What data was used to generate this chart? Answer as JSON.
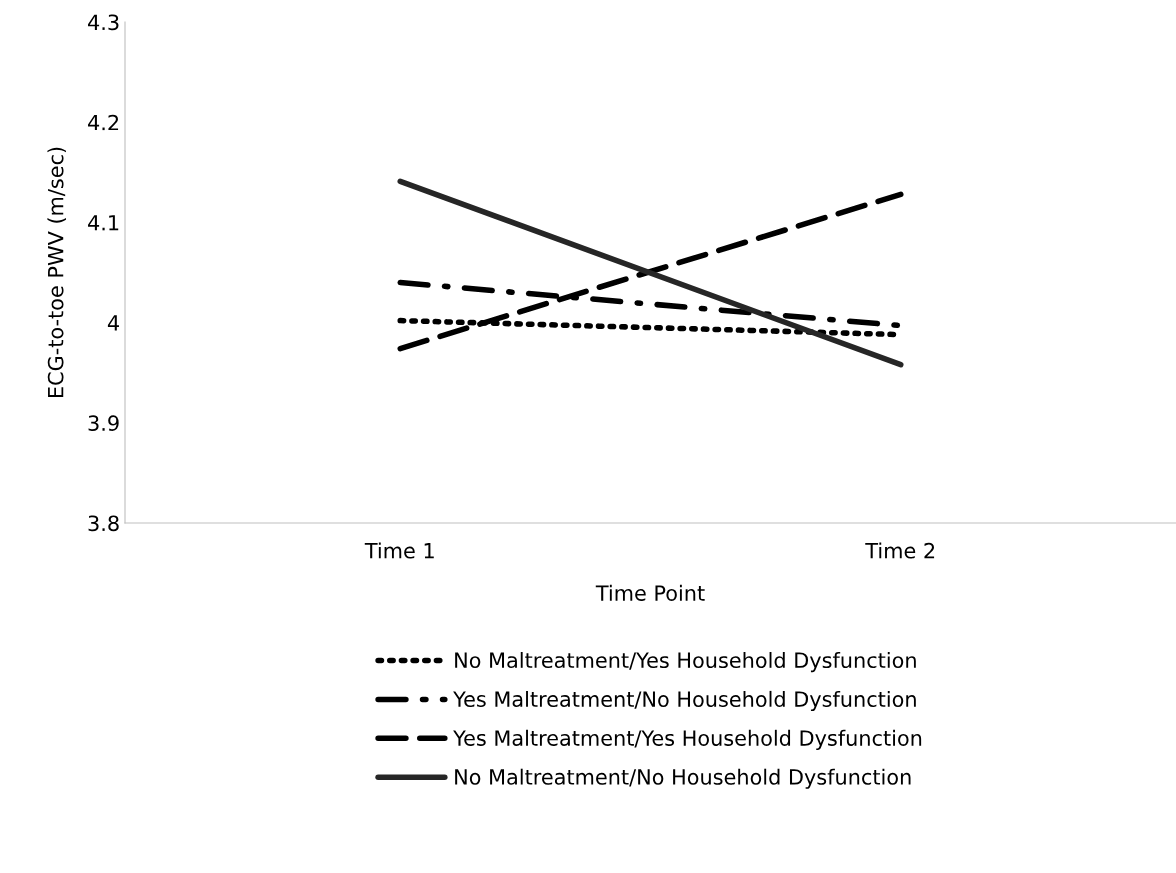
{
  "chart_data": {
    "type": "line",
    "xlabel": "Time Point",
    "ylabel": "ECG-to-toe PWV (m/sec)",
    "categories": [
      "Time 1",
      "Time 2"
    ],
    "ylim": [
      3.8,
      4.3
    ],
    "yticks": [
      3.8,
      3.9,
      4,
      4.1,
      4.2,
      4.3
    ],
    "grid": false,
    "legend": "bottom",
    "marker": "none",
    "series": [
      {
        "name": "No Maltreatment/Yes Household Dysfunction",
        "color": "#000000",
        "line_style": "dotted",
        "values": [
          4.002,
          3.988
        ]
      },
      {
        "name": "Yes Maltreatment/No Household Dysfunction",
        "color": "#000000",
        "line_style": "dashdot",
        "values": [
          4.04,
          3.997
        ]
      },
      {
        "name": "Yes Maltreatment/Yes Household Dysfunction",
        "color": "#000000",
        "line_style": "dashed",
        "values": [
          3.974,
          4.128
        ]
      },
      {
        "name": "No Maltreatment/No Household Dysfunction",
        "color": "#262626",
        "line_style": "solid",
        "values": [
          4.141,
          3.958
        ]
      }
    ]
  }
}
